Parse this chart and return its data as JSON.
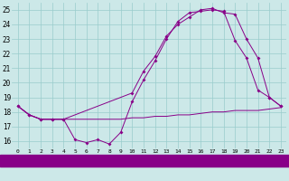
{
  "bg_color": "#cce8e8",
  "grid_color": "#99cccc",
  "line_color": "#880088",
  "x_ticks": [
    0,
    1,
    2,
    3,
    4,
    5,
    6,
    7,
    8,
    9,
    10,
    11,
    12,
    13,
    14,
    15,
    16,
    17,
    18,
    19,
    20,
    21,
    22,
    23
  ],
  "ylim": [
    15.5,
    25.5
  ],
  "yticks": [
    16,
    17,
    18,
    19,
    20,
    21,
    22,
    23,
    24,
    25
  ],
  "line1_x": [
    0,
    1,
    2,
    3,
    4,
    5,
    6,
    7,
    8,
    9,
    10,
    11,
    12,
    13,
    14,
    15,
    16,
    17,
    18,
    19,
    20,
    21,
    22,
    23
  ],
  "line1_y": [
    18.4,
    17.8,
    17.5,
    17.5,
    17.5,
    17.5,
    17.5,
    17.5,
    17.5,
    17.5,
    17.6,
    17.6,
    17.7,
    17.7,
    17.8,
    17.8,
    17.9,
    18.0,
    18.0,
    18.1,
    18.1,
    18.1,
    18.2,
    18.3
  ],
  "line2_x": [
    0,
    1,
    2,
    3,
    4,
    5,
    6,
    7,
    8,
    9,
    10,
    11,
    12,
    13,
    14,
    15,
    16,
    17,
    18,
    19,
    20,
    21,
    22,
    23
  ],
  "line2_y": [
    18.4,
    17.8,
    17.5,
    17.5,
    17.5,
    16.1,
    15.9,
    16.1,
    15.8,
    16.6,
    18.7,
    20.2,
    21.5,
    23.0,
    24.2,
    24.8,
    24.9,
    25.0,
    24.9,
    22.9,
    21.7,
    19.5,
    19.0,
    18.4
  ],
  "line3_x": [
    0,
    1,
    2,
    3,
    4,
    10,
    11,
    12,
    13,
    14,
    15,
    16,
    17,
    18,
    19,
    20,
    21,
    22,
    23
  ],
  "line3_y": [
    18.4,
    17.8,
    17.5,
    17.5,
    17.5,
    19.3,
    20.8,
    21.8,
    23.2,
    24.0,
    24.5,
    25.0,
    25.1,
    24.8,
    24.7,
    23.0,
    21.7,
    19.0,
    18.4
  ],
  "xlabel_bg": "#880088",
  "xlabel_color": "white",
  "xlabel_fontsize": 6.0
}
